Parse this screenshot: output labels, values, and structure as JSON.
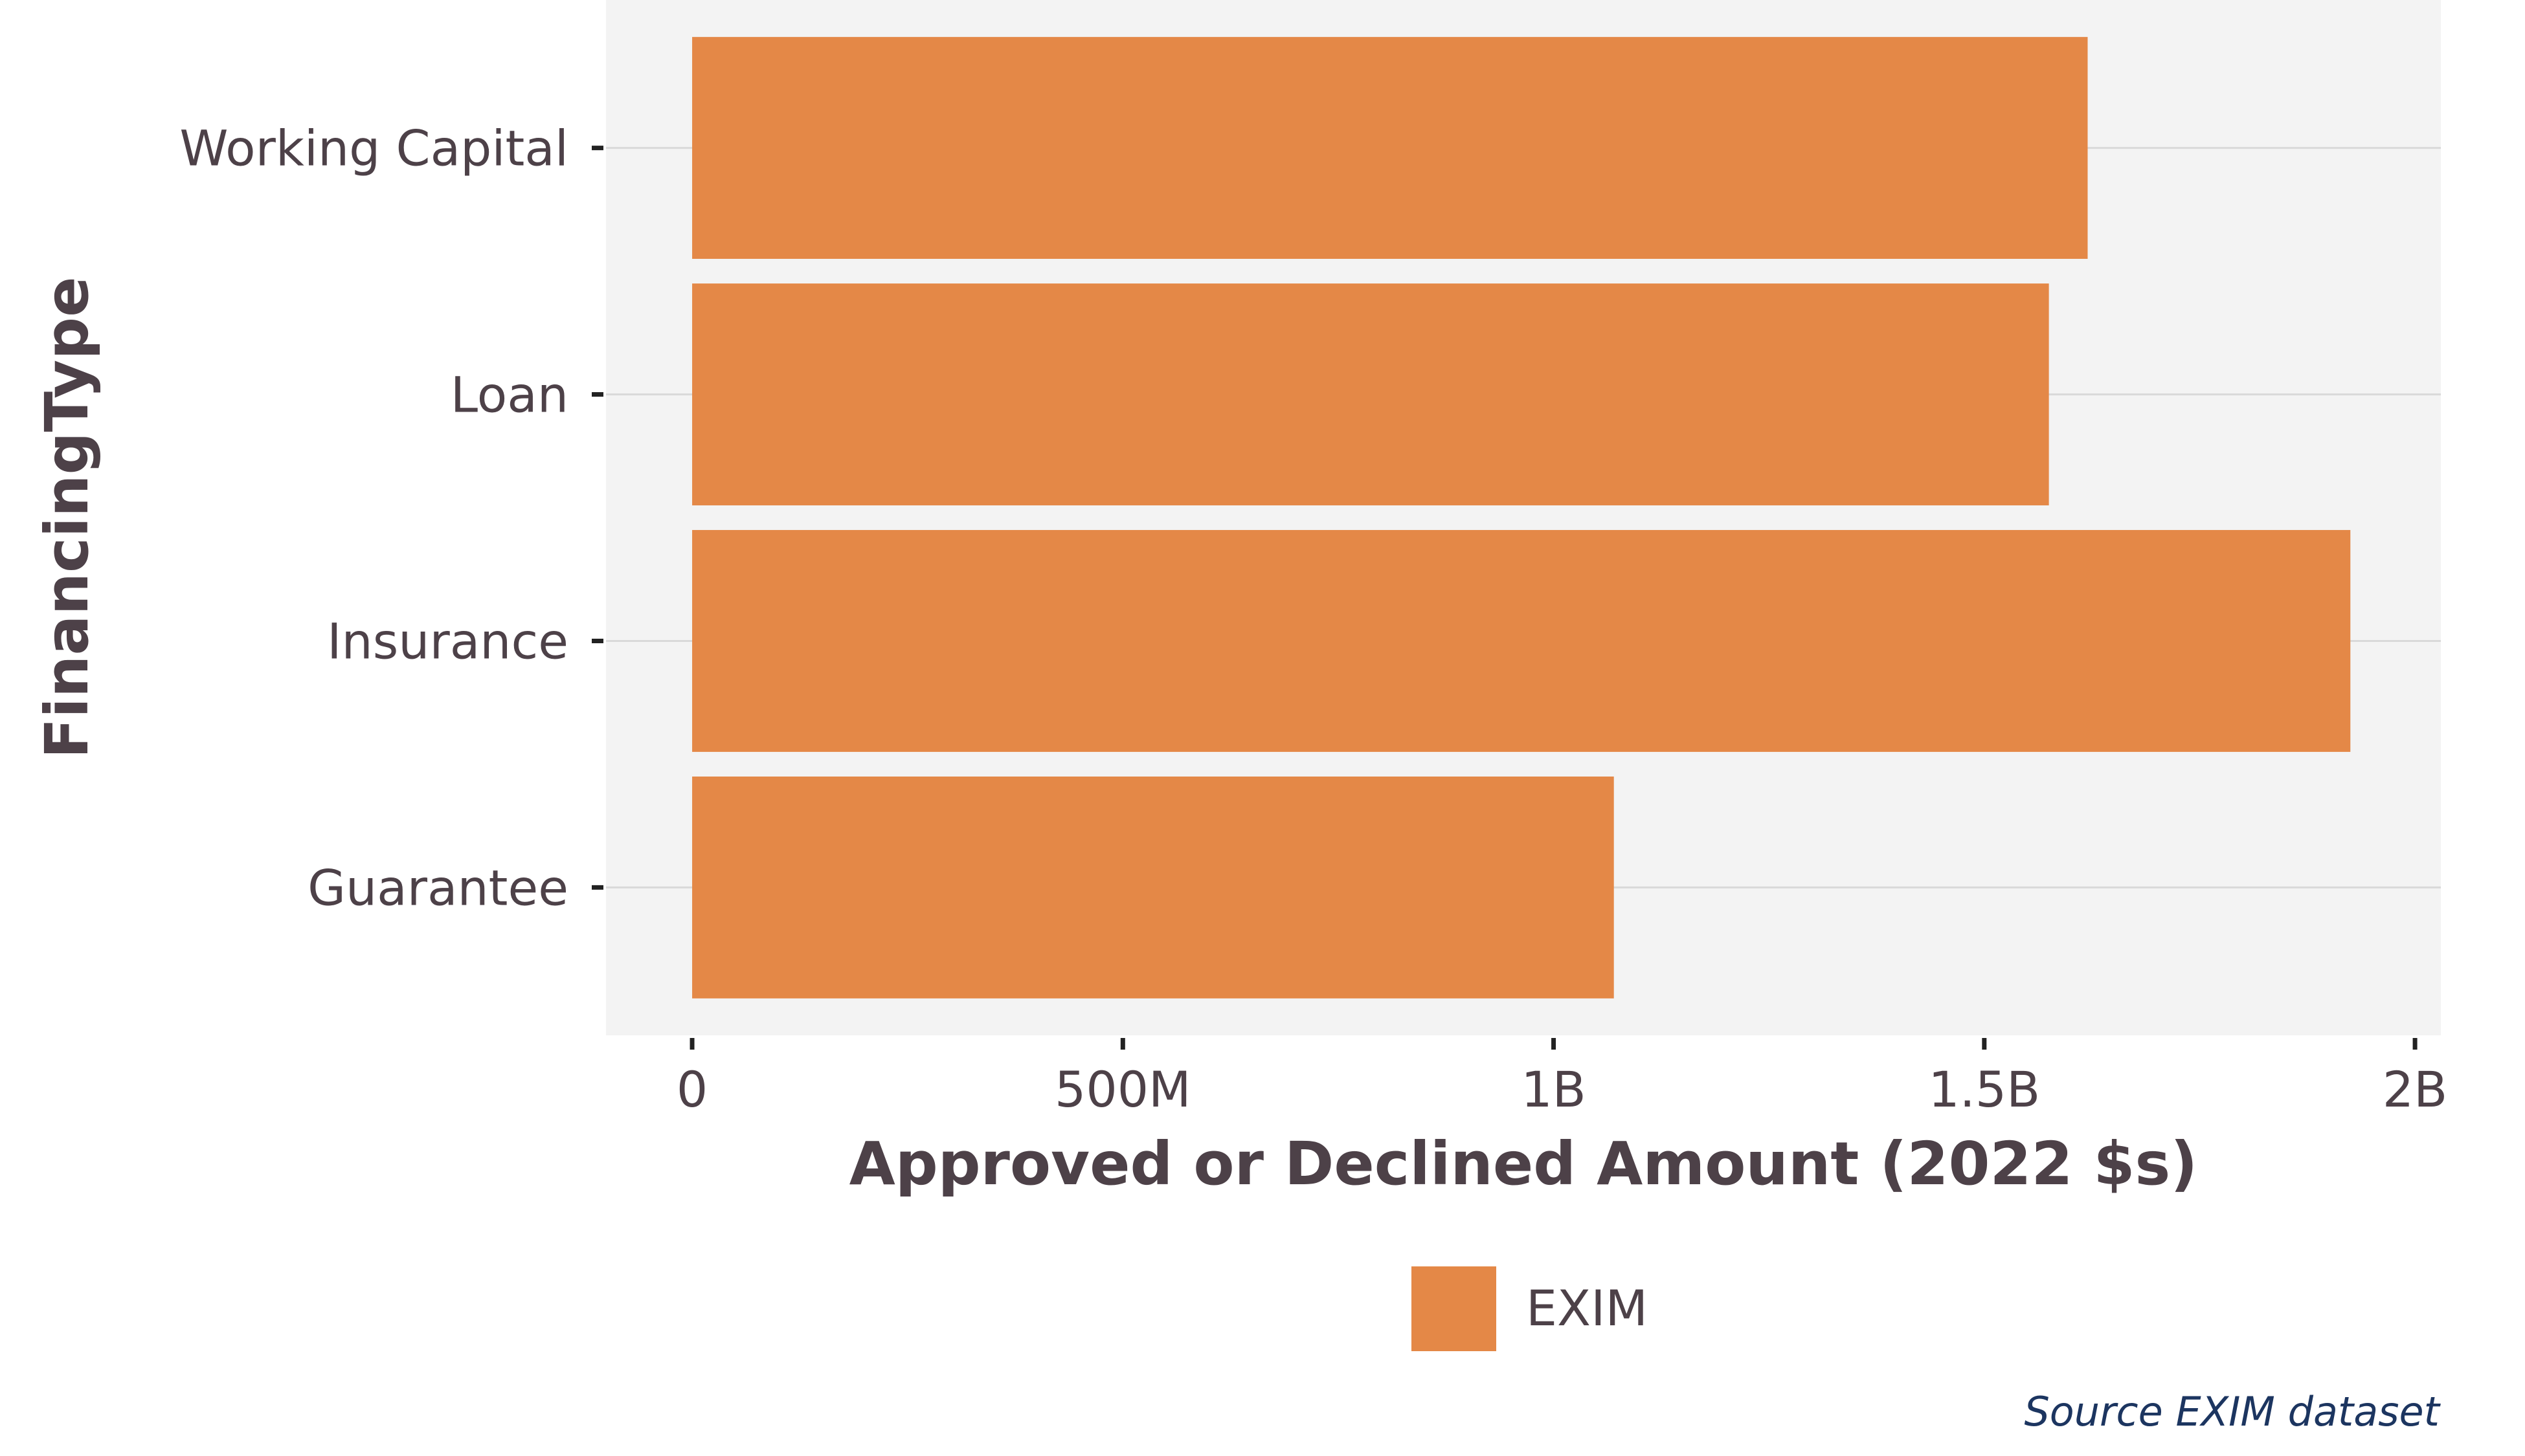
{
  "chart_data": {
    "type": "bar",
    "orientation": "horizontal",
    "categories": [
      "Working Capital",
      "Loan",
      "Insurance",
      "Guarantee"
    ],
    "series": [
      {
        "name": "EXIM",
        "values": [
          1620000000,
          1575000000,
          1925000000,
          1070000000
        ],
        "color": "#e48847"
      }
    ],
    "xlabel": "Approved or Declined Amount (2022 $s)",
    "ylabel": "FinancingType",
    "xlim": [
      -100000000,
      2030000000
    ],
    "xticks": [
      0,
      500000000,
      1000000000,
      1500000000,
      2000000000
    ],
    "xtick_labels": [
      "0",
      "500M",
      "1B",
      "1.5B",
      "2B"
    ],
    "grid": true,
    "legend": {
      "position": "bottom",
      "entries": [
        "EXIM"
      ]
    },
    "caption": "Source EXIM dataset",
    "panel_background": "#f3f3f3",
    "text_color": "#4d4148",
    "caption_color": "#1c3560"
  }
}
